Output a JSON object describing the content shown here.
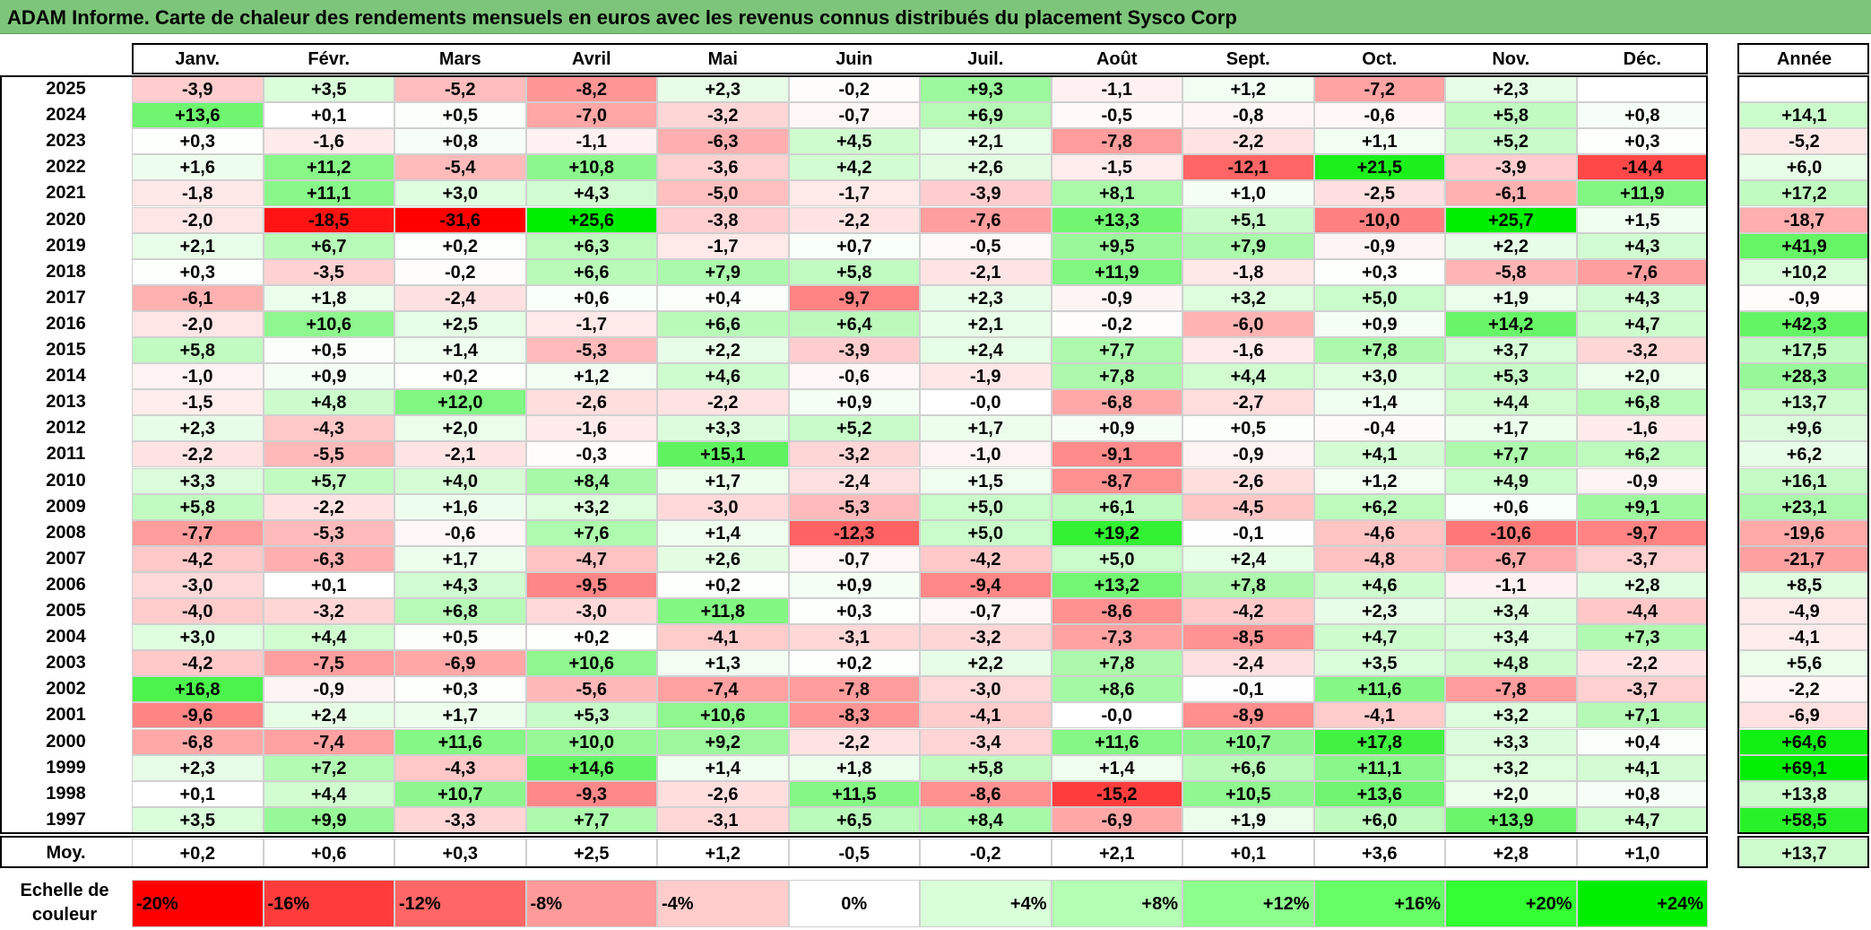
{
  "title": "ADAM Informe. Carte de chaleur des rendements mensuels en euros avec les revenus connus distribués du placement Sysco Corp",
  "chart_data": {
    "type": "heatmap",
    "columns": [
      "Janv.",
      "Févr.",
      "Mars",
      "Avril",
      "Mai",
      "Juin",
      "Juil.",
      "Août",
      "Sept.",
      "Oct.",
      "Nov.",
      "Déc."
    ],
    "annual_header": "Année",
    "rows": [
      {
        "year": "2025",
        "months": [
          "-3,9",
          "+3,5",
          "-5,2",
          "-8,2",
          "+2,3",
          "-0,2",
          "+9,3",
          "-1,1",
          "+1,2",
          "-7,2",
          "+2,3",
          ""
        ],
        "annual": ""
      },
      {
        "year": "2024",
        "months": [
          "+13,6",
          "+0,1",
          "+0,5",
          "-7,0",
          "-3,2",
          "-0,7",
          "+6,9",
          "-0,5",
          "-0,8",
          "-0,6",
          "+5,8",
          "+0,8"
        ],
        "annual": "+14,1"
      },
      {
        "year": "2023",
        "months": [
          "+0,3",
          "-1,6",
          "+0,8",
          "-1,1",
          "-6,3",
          "+4,5",
          "+2,1",
          "-7,8",
          "-2,2",
          "+1,1",
          "+5,2",
          "+0,3"
        ],
        "annual": "-5,2"
      },
      {
        "year": "2022",
        "months": [
          "+1,6",
          "+11,2",
          "-5,4",
          "+10,8",
          "-3,6",
          "+4,2",
          "+2,6",
          "-1,5",
          "-12,1",
          "+21,5",
          "-3,9",
          "-14,4"
        ],
        "annual": "+6,0"
      },
      {
        "year": "2021",
        "months": [
          "-1,8",
          "+11,1",
          "+3,0",
          "+4,3",
          "-5,0",
          "-1,7",
          "-3,9",
          "+8,1",
          "+1,0",
          "-2,5",
          "-6,1",
          "+11,9"
        ],
        "annual": "+17,2"
      },
      {
        "year": "2020",
        "months": [
          "-2,0",
          "-18,5",
          "-31,6",
          "+25,6",
          "-3,8",
          "-2,2",
          "-7,6",
          "+13,3",
          "+5,1",
          "-10,0",
          "+25,7",
          "+1,5"
        ],
        "annual": "-18,7"
      },
      {
        "year": "2019",
        "months": [
          "+2,1",
          "+6,7",
          "+0,2",
          "+6,3",
          "-1,7",
          "+0,7",
          "-0,5",
          "+9,5",
          "+7,9",
          "-0,9",
          "+2,2",
          "+4,3"
        ],
        "annual": "+41,9"
      },
      {
        "year": "2018",
        "months": [
          "+0,3",
          "-3,5",
          "-0,2",
          "+6,6",
          "+7,9",
          "+5,8",
          "-2,1",
          "+11,9",
          "-1,8",
          "+0,3",
          "-5,8",
          "-7,6"
        ],
        "annual": "+10,2"
      },
      {
        "year": "2017",
        "months": [
          "-6,1",
          "+1,8",
          "-2,4",
          "+0,6",
          "+0,4",
          "-9,7",
          "+2,3",
          "-0,9",
          "+3,2",
          "+5,0",
          "+1,9",
          "+4,3"
        ],
        "annual": "-0,9"
      },
      {
        "year": "2016",
        "months": [
          "-2,0",
          "+10,6",
          "+2,5",
          "-1,7",
          "+6,6",
          "+6,4",
          "+2,1",
          "-0,2",
          "-6,0",
          "+0,9",
          "+14,2",
          "+4,7"
        ],
        "annual": "+42,3"
      },
      {
        "year": "2015",
        "months": [
          "+5,8",
          "+0,5",
          "+1,4",
          "-5,3",
          "+2,2",
          "-3,9",
          "+2,4",
          "+7,7",
          "-1,6",
          "+7,8",
          "+3,7",
          "-3,2"
        ],
        "annual": "+17,5"
      },
      {
        "year": "2014",
        "months": [
          "-1,0",
          "+0,9",
          "+0,2",
          "+1,2",
          "+4,6",
          "-0,6",
          "-1,9",
          "+7,8",
          "+4,4",
          "+3,0",
          "+5,3",
          "+2,0"
        ],
        "annual": "+28,3"
      },
      {
        "year": "2013",
        "months": [
          "-1,5",
          "+4,8",
          "+12,0",
          "-2,6",
          "-2,2",
          "+0,9",
          "-0,0",
          "-6,8",
          "-2,7",
          "+1,4",
          "+4,4",
          "+6,8"
        ],
        "annual": "+13,7"
      },
      {
        "year": "2012",
        "months": [
          "+2,3",
          "-4,3",
          "+2,0",
          "-1,6",
          "+3,3",
          "+5,2",
          "+1,7",
          "+0,9",
          "+0,5",
          "-0,4",
          "+1,7",
          "-1,6"
        ],
        "annual": "+9,6"
      },
      {
        "year": "2011",
        "months": [
          "-2,2",
          "-5,5",
          "-2,1",
          "-0,3",
          "+15,1",
          "-3,2",
          "-1,0",
          "-9,1",
          "-0,9",
          "+4,1",
          "+7,7",
          "+6,2"
        ],
        "annual": "+6,2"
      },
      {
        "year": "2010",
        "months": [
          "+3,3",
          "+5,7",
          "+4,0",
          "+8,4",
          "+1,7",
          "-2,4",
          "+1,5",
          "-8,7",
          "-2,6",
          "+1,2",
          "+4,9",
          "-0,9"
        ],
        "annual": "+16,1"
      },
      {
        "year": "2009",
        "months": [
          "+5,8",
          "-2,2",
          "+1,6",
          "+3,2",
          "-3,0",
          "-5,3",
          "+5,0",
          "+6,1",
          "-4,5",
          "+6,2",
          "+0,6",
          "+9,1"
        ],
        "annual": "+23,1"
      },
      {
        "year": "2008",
        "months": [
          "-7,7",
          "-5,3",
          "-0,6",
          "+7,6",
          "+1,4",
          "-12,3",
          "+5,0",
          "+19,2",
          "-0,1",
          "-4,6",
          "-10,6",
          "-9,7"
        ],
        "annual": "-19,6"
      },
      {
        "year": "2007",
        "months": [
          "-4,2",
          "-6,3",
          "+1,7",
          "-4,7",
          "+2,6",
          "-0,7",
          "-4,2",
          "+5,0",
          "+2,4",
          "-4,8",
          "-6,7",
          "-3,7"
        ],
        "annual": "-21,7"
      },
      {
        "year": "2006",
        "months": [
          "-3,0",
          "+0,1",
          "+4,3",
          "-9,5",
          "+0,2",
          "+0,9",
          "-9,4",
          "+13,2",
          "+7,8",
          "+4,6",
          "-1,1",
          "+2,8"
        ],
        "annual": "+8,5"
      },
      {
        "year": "2005",
        "months": [
          "-4,0",
          "-3,2",
          "+6,8",
          "-3,0",
          "+11,8",
          "+0,3",
          "-0,7",
          "-8,6",
          "-4,2",
          "+2,3",
          "+3,4",
          "-4,4"
        ],
        "annual": "-4,9"
      },
      {
        "year": "2004",
        "months": [
          "+3,0",
          "+4,4",
          "+0,5",
          "+0,2",
          "-4,1",
          "-3,1",
          "-3,2",
          "-7,3",
          "-8,5",
          "+4,7",
          "+3,4",
          "+7,3"
        ],
        "annual": "-4,1"
      },
      {
        "year": "2003",
        "months": [
          "-4,2",
          "-7,5",
          "-6,9",
          "+10,6",
          "+1,3",
          "+0,2",
          "+2,2",
          "+7,8",
          "-2,4",
          "+3,5",
          "+4,8",
          "-2,2"
        ],
        "annual": "+5,6"
      },
      {
        "year": "2002",
        "months": [
          "+16,8",
          "-0,9",
          "+0,3",
          "-5,6",
          "-7,4",
          "-7,8",
          "-3,0",
          "+8,6",
          "-0,1",
          "+11,6",
          "-7,8",
          "-3,7"
        ],
        "annual": "-2,2"
      },
      {
        "year": "2001",
        "months": [
          "-9,6",
          "+2,4",
          "+1,7",
          "+5,3",
          "+10,6",
          "-8,3",
          "-4,1",
          "-0,0",
          "-8,9",
          "-4,1",
          "+3,2",
          "+7,1"
        ],
        "annual": "-6,9"
      },
      {
        "year": "2000",
        "months": [
          "-6,8",
          "-7,4",
          "+11,6",
          "+10,0",
          "+9,2",
          "-2,2",
          "-3,4",
          "+11,6",
          "+10,7",
          "+17,8",
          "+3,3",
          "+0,4"
        ],
        "annual": "+64,6"
      },
      {
        "year": "1999",
        "months": [
          "+2,3",
          "+7,2",
          "-4,3",
          "+14,6",
          "+1,4",
          "+1,8",
          "+5,8",
          "+1,4",
          "+6,6",
          "+11,1",
          "+3,2",
          "+4,1"
        ],
        "annual": "+69,1"
      },
      {
        "year": "1998",
        "months": [
          "+0,1",
          "+4,4",
          "+10,7",
          "-9,3",
          "-2,6",
          "+11,5",
          "-8,6",
          "-15,2",
          "+10,5",
          "+13,6",
          "+2,0",
          "+0,8"
        ],
        "annual": "+13,8"
      },
      {
        "year": "1997",
        "months": [
          "+3,5",
          "+9,9",
          "-3,3",
          "+7,7",
          "-3,1",
          "+6,5",
          "+8,4",
          "-6,9",
          "+1,9",
          "+6,0",
          "+13,9",
          "+4,7"
        ],
        "annual": "+58,5"
      }
    ],
    "average": {
      "label": "Moy.",
      "months": [
        "+0,2",
        "+0,6",
        "+0,3",
        "+2,5",
        "+1,2",
        "-0,5",
        "-0,2",
        "+2,1",
        "+0,1",
        "+3,6",
        "+2,8",
        "+1,0"
      ],
      "annual": "+13,7"
    },
    "scale": {
      "label": "Echelle de couleur",
      "steps": [
        "-20%",
        "-16%",
        "-12%",
        "-8%",
        "-4%",
        "0%",
        "+4%",
        "+8%",
        "+12%",
        "+16%",
        "+20%",
        "+24%"
      ],
      "colors": [
        "#ff0000",
        "#ff3c3c",
        "#ff6666",
        "#ff9a9a",
        "#ffcccc",
        "#ffffff",
        "#d9ffd9",
        "#b3ffb3",
        "#8dff8d",
        "#66ff66",
        "#33ff33",
        "#00ee00"
      ]
    }
  }
}
